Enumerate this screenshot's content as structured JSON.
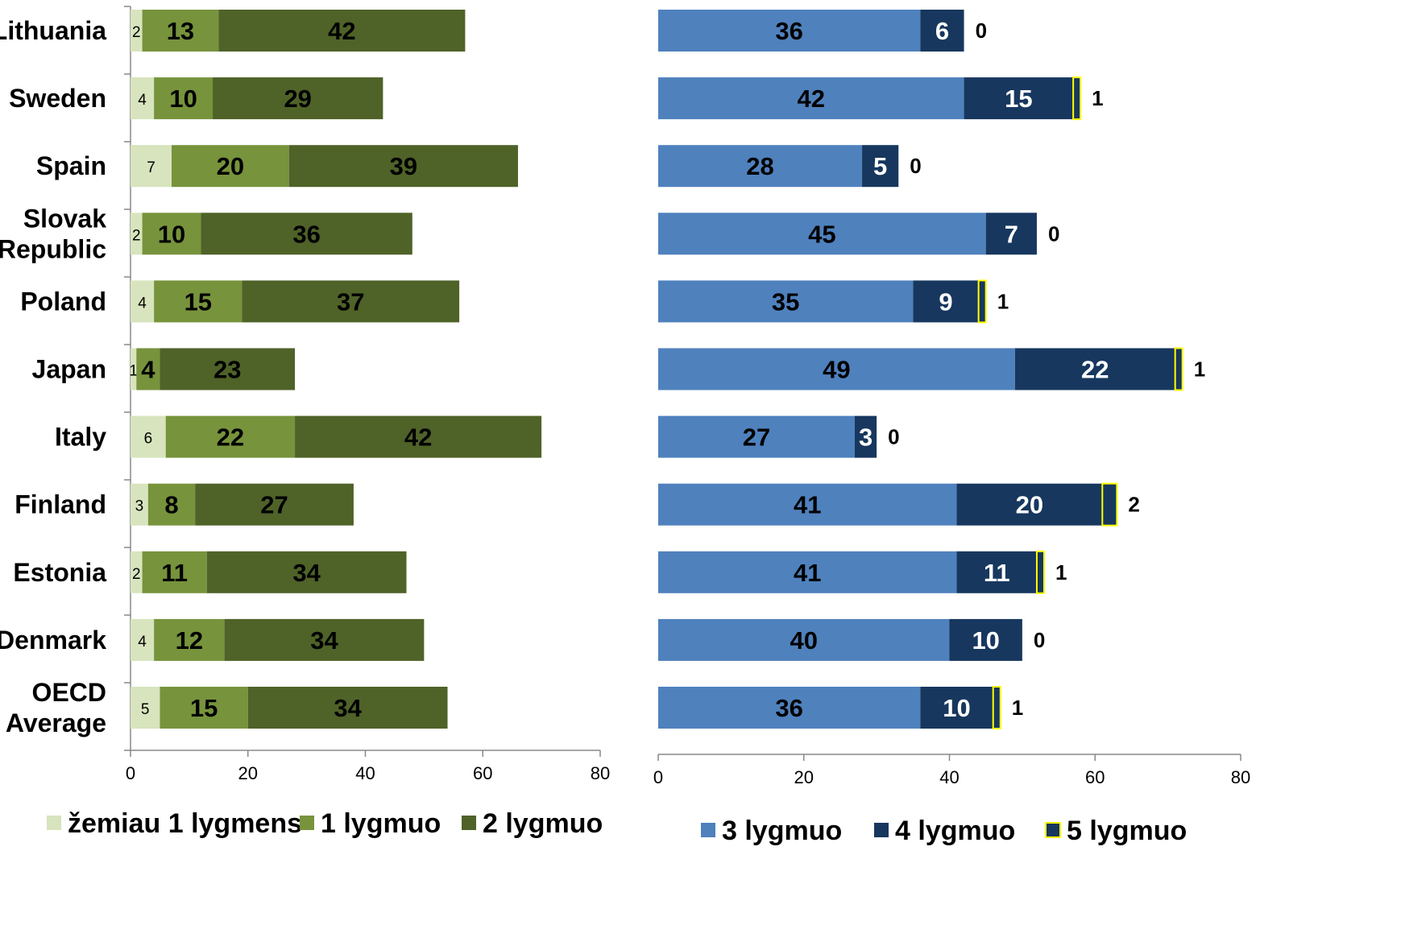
{
  "chart_data": [
    {
      "type": "bar",
      "orientation": "horizontal",
      "stacked": true,
      "categories": [
        "Lithuania",
        "Sweden",
        "Spain",
        "Slovak Republic",
        "Poland",
        "Japan",
        "Italy",
        "Finland",
        "Estonia",
        "Denmark",
        "OECD Average"
      ],
      "series": [
        {
          "name": "žemiau 1 lygmens",
          "color": "#d7e4bd",
          "values": [
            2,
            4,
            7,
            2,
            4,
            1,
            6,
            3,
            2,
            4,
            5
          ]
        },
        {
          "name": "1 lygmuo",
          "color": "#77933c",
          "values": [
            13,
            10,
            20,
            10,
            15,
            4,
            22,
            8,
            11,
            12,
            15
          ]
        },
        {
          "name": "2 lygmuo",
          "color": "#4f6228",
          "values": [
            42,
            29,
            39,
            36,
            37,
            23,
            42,
            27,
            34,
            34,
            34
          ]
        }
      ],
      "xlim": [
        0,
        80
      ],
      "xticks": [
        "0",
        "20",
        "40",
        "60",
        "80"
      ],
      "legend_position": "bottom",
      "grid": false
    },
    {
      "type": "bar",
      "orientation": "horizontal",
      "stacked": true,
      "categories": [
        "Lithuania",
        "Sweden",
        "Spain",
        "Slovak Republic",
        "Poland",
        "Japan",
        "Italy",
        "Finland",
        "Estonia",
        "Denmark",
        "OECD Average"
      ],
      "series": [
        {
          "name": "3 lygmuo",
          "color": "#4f81bd",
          "values": [
            36,
            42,
            28,
            45,
            35,
            49,
            27,
            41,
            41,
            40,
            36
          ]
        },
        {
          "name": "4 lygmuo",
          "color": "#17375e",
          "values": [
            6,
            15,
            5,
            7,
            9,
            22,
            3,
            20,
            11,
            10,
            10
          ]
        },
        {
          "name": "5 lygmuo",
          "color": "#17375e",
          "border": "#ffff00",
          "values": [
            0,
            1,
            0,
            0,
            1,
            1,
            0,
            2,
            1,
            0,
            1
          ]
        }
      ],
      "xlim": [
        0,
        80
      ],
      "xticks": [
        "0",
        "20",
        "40",
        "60",
        "80"
      ],
      "legend_position": "bottom",
      "grid": false
    }
  ],
  "category_labels": [
    [
      "Lithuania"
    ],
    [
      "Sweden"
    ],
    [
      "Spain"
    ],
    [
      "Slovak",
      "Republic"
    ],
    [
      "Poland"
    ],
    [
      "Japan"
    ],
    [
      "Italy"
    ],
    [
      "Finland"
    ],
    [
      "Estonia"
    ],
    [
      "Denmark"
    ],
    [
      "OECD",
      "Average"
    ]
  ]
}
